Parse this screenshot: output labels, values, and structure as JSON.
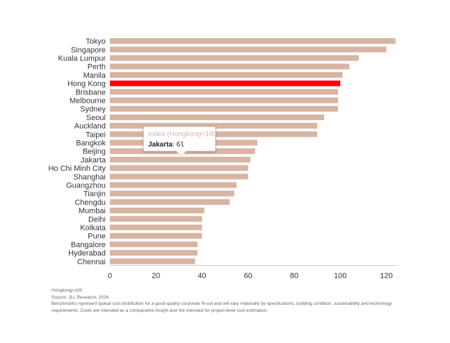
{
  "chart_data": {
    "type": "bar",
    "orientation": "horizontal",
    "categories": [
      "Tokyo",
      "Singapore",
      "Kuala Lumpur",
      "Perth",
      "Manila",
      "Hong Kong",
      "Brisbane",
      "Melbourne",
      "Sydney",
      "Seoul",
      "Auckland",
      "Taipei",
      "Bangkok",
      "Beijing",
      "Jakarta",
      "Ho Chi Minh City",
      "Shanghai",
      "Guangzhou",
      "Tianjin",
      "Chengdu",
      "Mumbai",
      "Delhi",
      "Kolkata",
      "Pune",
      "Bangalore",
      "Hyderabad",
      "Chennai"
    ],
    "values": [
      124,
      120,
      108,
      104,
      101,
      100,
      99,
      99,
      99,
      93,
      90,
      90,
      64,
      63,
      61,
      60,
      60,
      55,
      54,
      52,
      41,
      40,
      40,
      40,
      38,
      38,
      37
    ],
    "highlight_category": "Hong Kong",
    "xlim": [
      0,
      125
    ],
    "xticks": [
      0,
      20,
      40,
      60,
      80,
      100,
      120
    ],
    "grid": false,
    "colors": {
      "bar": "#d8b4a2",
      "highlight": "#ff0000",
      "text": "#333333"
    },
    "tooltip": {
      "title": "Index (Hongkong=100)",
      "label": "Jakarta",
      "value": "61"
    }
  },
  "footnotes": [
    "Hongkong=100",
    "Source: JLL Research, 2026",
    "Benchmarks represent typical cost distribution for a good-quality corporate fit-out and will vary materially by specifications, building condition, sustainability and technology requirements. Costs are intended as a comparative insight and not intended for project-level cost estimation."
  ]
}
